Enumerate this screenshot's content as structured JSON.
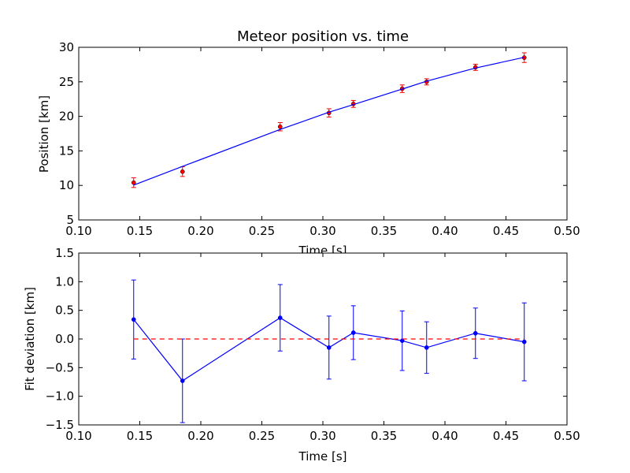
{
  "colors": {
    "line": "#0000ff",
    "points": "#ff0000",
    "reference": "#ff0000",
    "frame": "#000000"
  },
  "chart_data": [
    {
      "type": "scatter",
      "title": "Meteor position vs. time",
      "xlabel": "Time [s]",
      "ylabel": "Position [km]",
      "xlim": [
        0.1,
        0.5
      ],
      "ylim": [
        5,
        30
      ],
      "xticks": [
        "0.10",
        "0.15",
        "0.20",
        "0.25",
        "0.30",
        "0.35",
        "0.40",
        "0.45",
        "0.50"
      ],
      "yticks": [
        "5",
        "10",
        "15",
        "20",
        "25",
        "30"
      ],
      "grid": false,
      "series": [
        {
          "kind": "errorbar-points",
          "x": [
            0.145,
            0.185,
            0.265,
            0.305,
            0.325,
            0.365,
            0.385,
            0.425,
            0.465
          ],
          "y": [
            10.4,
            12.0,
            18.5,
            20.5,
            21.8,
            24.0,
            25.0,
            27.1,
            28.5
          ],
          "yerr": [
            0.7,
            0.7,
            0.6,
            0.6,
            0.5,
            0.55,
            0.45,
            0.45,
            0.7
          ]
        },
        {
          "kind": "fit-line",
          "x": [
            0.145,
            0.185,
            0.265,
            0.305,
            0.325,
            0.365,
            0.385,
            0.425,
            0.465
          ],
          "y": [
            10.05,
            12.75,
            18.1,
            20.6,
            21.7,
            23.95,
            25.1,
            27.0,
            28.55
          ]
        }
      ]
    },
    {
      "type": "line",
      "title": "",
      "xlabel": "Time [s]",
      "ylabel": "Fit deviation [km]",
      "xlim": [
        0.1,
        0.5
      ],
      "ylim": [
        -1.5,
        1.5
      ],
      "xticks": [
        "0.10",
        "0.15",
        "0.20",
        "0.25",
        "0.30",
        "0.35",
        "0.40",
        "0.45",
        "0.50"
      ],
      "yticks": [
        "−1.5",
        "−1.0",
        "−0.5",
        "0.0",
        "0.5",
        "1.0",
        "1.5"
      ],
      "grid": false,
      "series": [
        {
          "kind": "errorbar-line",
          "x": [
            0.145,
            0.185,
            0.265,
            0.305,
            0.325,
            0.365,
            0.385,
            0.425,
            0.465
          ],
          "y": [
            0.34,
            -0.73,
            0.37,
            -0.15,
            0.11,
            -0.03,
            -0.15,
            0.1,
            -0.05
          ],
          "yerr": [
            0.69,
            0.73,
            0.58,
            0.55,
            0.47,
            0.52,
            0.45,
            0.44,
            0.68
          ]
        },
        {
          "kind": "reference-line",
          "x": [
            0.145,
            0.465
          ],
          "y": [
            0.0,
            0.0
          ]
        }
      ]
    }
  ]
}
